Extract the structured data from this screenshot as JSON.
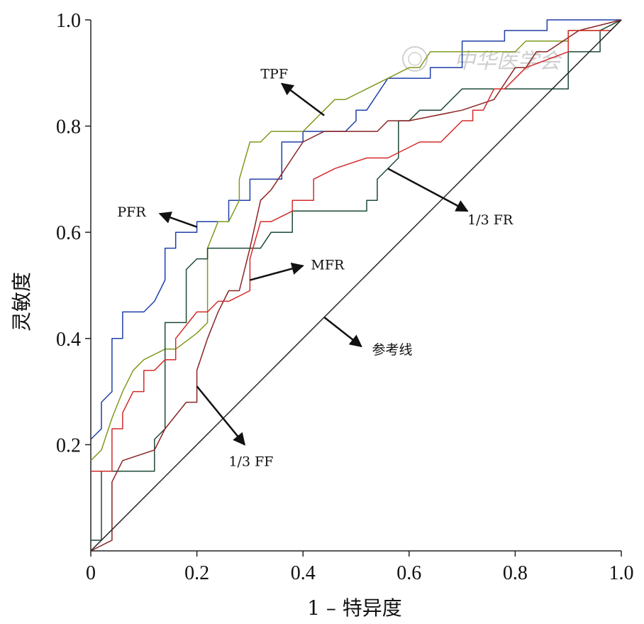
{
  "chart_data": {
    "type": "line",
    "title": "",
    "xlabel": "1 – 特异度",
    "ylabel": "灵敏度",
    "xlim": [
      0,
      1.0
    ],
    "ylim": [
      0,
      1.0
    ],
    "x_ticks": [
      "0",
      "0.2",
      "0.4",
      "0.6",
      "0.8",
      "1.0"
    ],
    "y_ticks": [
      "0.2",
      "0.4",
      "0.6",
      "0.8",
      "1.0"
    ],
    "grid": false,
    "legend": "none",
    "watermark": "中华医学会",
    "series": [
      {
        "name": "PFR",
        "color": "#1f3fa8",
        "points": [
          [
            0,
            0.21
          ],
          [
            0.02,
            0.23
          ],
          [
            0.02,
            0.28
          ],
          [
            0.04,
            0.3
          ],
          [
            0.04,
            0.4
          ],
          [
            0.06,
            0.4
          ],
          [
            0.06,
            0.45
          ],
          [
            0.1,
            0.45
          ],
          [
            0.12,
            0.47
          ],
          [
            0.14,
            0.51
          ],
          [
            0.14,
            0.57
          ],
          [
            0.16,
            0.57
          ],
          [
            0.16,
            0.6
          ],
          [
            0.2,
            0.6
          ],
          [
            0.2,
            0.62
          ],
          [
            0.24,
            0.62
          ],
          [
            0.26,
            0.62
          ],
          [
            0.26,
            0.66
          ],
          [
            0.3,
            0.66
          ],
          [
            0.3,
            0.7
          ],
          [
            0.36,
            0.7
          ],
          [
            0.36,
            0.77
          ],
          [
            0.4,
            0.77
          ],
          [
            0.4,
            0.79
          ],
          [
            0.48,
            0.79
          ],
          [
            0.5,
            0.81
          ],
          [
            0.5,
            0.83
          ],
          [
            0.52,
            0.83
          ],
          [
            0.56,
            0.89
          ],
          [
            0.64,
            0.89
          ],
          [
            0.64,
            0.91
          ],
          [
            0.7,
            0.91
          ],
          [
            0.7,
            0.96
          ],
          [
            0.78,
            0.96
          ],
          [
            0.78,
            0.98
          ],
          [
            0.86,
            0.98
          ],
          [
            0.86,
            1.0
          ],
          [
            1.0,
            1.0
          ]
        ]
      },
      {
        "name": "TPF",
        "color": "#7f9a1e",
        "points": [
          [
            0,
            0.17
          ],
          [
            0.02,
            0.19
          ],
          [
            0.04,
            0.25
          ],
          [
            0.06,
            0.3
          ],
          [
            0.08,
            0.34
          ],
          [
            0.1,
            0.36
          ],
          [
            0.14,
            0.38
          ],
          [
            0.16,
            0.38
          ],
          [
            0.2,
            0.41
          ],
          [
            0.22,
            0.43
          ],
          [
            0.22,
            0.57
          ],
          [
            0.24,
            0.62
          ],
          [
            0.26,
            0.62
          ],
          [
            0.28,
            0.66
          ],
          [
            0.28,
            0.7
          ],
          [
            0.3,
            0.77
          ],
          [
            0.32,
            0.77
          ],
          [
            0.34,
            0.79
          ],
          [
            0.4,
            0.79
          ],
          [
            0.44,
            0.83
          ],
          [
            0.46,
            0.85
          ],
          [
            0.48,
            0.85
          ],
          [
            0.52,
            0.87
          ],
          [
            0.56,
            0.89
          ],
          [
            0.6,
            0.91
          ],
          [
            0.62,
            0.91
          ],
          [
            0.64,
            0.94
          ],
          [
            0.8,
            0.94
          ],
          [
            0.82,
            0.96
          ],
          [
            0.9,
            0.96
          ],
          [
            0.9,
            0.98
          ],
          [
            0.96,
            0.98
          ],
          [
            1.0,
            1.0
          ]
        ]
      },
      {
        "name": "1/3 FR",
        "color": "#1e4a35",
        "points": [
          [
            0,
            0.02
          ],
          [
            0.02,
            0.02
          ],
          [
            0.02,
            0.15
          ],
          [
            0.12,
            0.15
          ],
          [
            0.12,
            0.21
          ],
          [
            0.14,
            0.23
          ],
          [
            0.14,
            0.43
          ],
          [
            0.18,
            0.43
          ],
          [
            0.18,
            0.53
          ],
          [
            0.2,
            0.55
          ],
          [
            0.22,
            0.55
          ],
          [
            0.22,
            0.57
          ],
          [
            0.32,
            0.57
          ],
          [
            0.34,
            0.6
          ],
          [
            0.38,
            0.6
          ],
          [
            0.38,
            0.64
          ],
          [
            0.52,
            0.64
          ],
          [
            0.52,
            0.66
          ],
          [
            0.54,
            0.66
          ],
          [
            0.54,
            0.7
          ],
          [
            0.58,
            0.74
          ],
          [
            0.58,
            0.81
          ],
          [
            0.6,
            0.81
          ],
          [
            0.62,
            0.83
          ],
          [
            0.66,
            0.83
          ],
          [
            0.7,
            0.87
          ],
          [
            0.9,
            0.87
          ],
          [
            0.9,
            0.94
          ],
          [
            0.96,
            0.94
          ],
          [
            0.96,
            0.98
          ],
          [
            1.0,
            1.0
          ]
        ]
      },
      {
        "name": "MFR",
        "color": "#8a2323",
        "points": [
          [
            0,
            0
          ],
          [
            0.04,
            0.02
          ],
          [
            0.04,
            0.13
          ],
          [
            0.06,
            0.17
          ],
          [
            0.12,
            0.19
          ],
          [
            0.14,
            0.23
          ],
          [
            0.18,
            0.28
          ],
          [
            0.2,
            0.28
          ],
          [
            0.2,
            0.34
          ],
          [
            0.22,
            0.4
          ],
          [
            0.24,
            0.45
          ],
          [
            0.26,
            0.49
          ],
          [
            0.28,
            0.49
          ],
          [
            0.3,
            0.57
          ],
          [
            0.32,
            0.66
          ],
          [
            0.34,
            0.68
          ],
          [
            0.38,
            0.74
          ],
          [
            0.4,
            0.77
          ],
          [
            0.44,
            0.79
          ],
          [
            0.54,
            0.79
          ],
          [
            0.56,
            0.81
          ],
          [
            0.6,
            0.81
          ],
          [
            0.7,
            0.83
          ],
          [
            0.76,
            0.85
          ],
          [
            0.8,
            0.91
          ],
          [
            0.82,
            0.91
          ],
          [
            0.84,
            0.94
          ],
          [
            0.86,
            0.94
          ],
          [
            0.92,
            0.98
          ],
          [
            1.0,
            1.0
          ]
        ]
      },
      {
        "name": "1/3 FF",
        "color": "#d42a2a",
        "points": [
          [
            0,
            0.15
          ],
          [
            0.04,
            0.15
          ],
          [
            0.04,
            0.23
          ],
          [
            0.06,
            0.23
          ],
          [
            0.06,
            0.26
          ],
          [
            0.08,
            0.3
          ],
          [
            0.1,
            0.3
          ],
          [
            0.1,
            0.34
          ],
          [
            0.12,
            0.34
          ],
          [
            0.14,
            0.36
          ],
          [
            0.16,
            0.36
          ],
          [
            0.16,
            0.4
          ],
          [
            0.2,
            0.45
          ],
          [
            0.22,
            0.45
          ],
          [
            0.24,
            0.47
          ],
          [
            0.26,
            0.47
          ],
          [
            0.3,
            0.49
          ],
          [
            0.3,
            0.55
          ],
          [
            0.32,
            0.62
          ],
          [
            0.34,
            0.62
          ],
          [
            0.38,
            0.64
          ],
          [
            0.38,
            0.66
          ],
          [
            0.42,
            0.66
          ],
          [
            0.42,
            0.7
          ],
          [
            0.46,
            0.72
          ],
          [
            0.52,
            0.74
          ],
          [
            0.56,
            0.74
          ],
          [
            0.62,
            0.77
          ],
          [
            0.66,
            0.77
          ],
          [
            0.7,
            0.81
          ],
          [
            0.72,
            0.81
          ],
          [
            0.72,
            0.83
          ],
          [
            0.74,
            0.83
          ],
          [
            0.76,
            0.87
          ],
          [
            0.78,
            0.87
          ],
          [
            0.8,
            0.89
          ],
          [
            0.82,
            0.91
          ],
          [
            0.9,
            0.94
          ],
          [
            0.9,
            0.98
          ],
          [
            0.98,
            0.98
          ],
          [
            1.0,
            1.0
          ]
        ]
      },
      {
        "name": "参考线",
        "color": "#222222",
        "points": [
          [
            0,
            0
          ],
          [
            1.0,
            1.0
          ]
        ]
      }
    ],
    "annotations": [
      {
        "text": "TPF",
        "label": [
          0.32,
          0.89
        ],
        "arrow_from": [
          0.44,
          0.82
        ],
        "arrow_to": [
          0.36,
          0.88
        ]
      },
      {
        "text": "PFR",
        "label": [
          0.05,
          0.63
        ],
        "arrow_from": [
          0.2,
          0.61
        ],
        "arrow_to": [
          0.13,
          0.635
        ]
      },
      {
        "text": "1/3 FR",
        "label": [
          0.71,
          0.615
        ],
        "arrow_from": [
          0.56,
          0.72
        ],
        "arrow_to": [
          0.71,
          0.64
        ]
      },
      {
        "text": "MFR",
        "label": [
          0.415,
          0.53
        ],
        "arrow_from": [
          0.3,
          0.51
        ],
        "arrow_to": [
          0.4,
          0.537
        ]
      },
      {
        "text": "1/3 FF",
        "label": [
          0.26,
          0.16
        ],
        "arrow_from": [
          0.2,
          0.31
        ],
        "arrow_to": [
          0.29,
          0.2
        ]
      },
      {
        "text": "参考线",
        "label": [
          0.53,
          0.37
        ],
        "arrow_from": [
          0.44,
          0.44
        ],
        "arrow_to": [
          0.51,
          0.385
        ]
      }
    ]
  }
}
